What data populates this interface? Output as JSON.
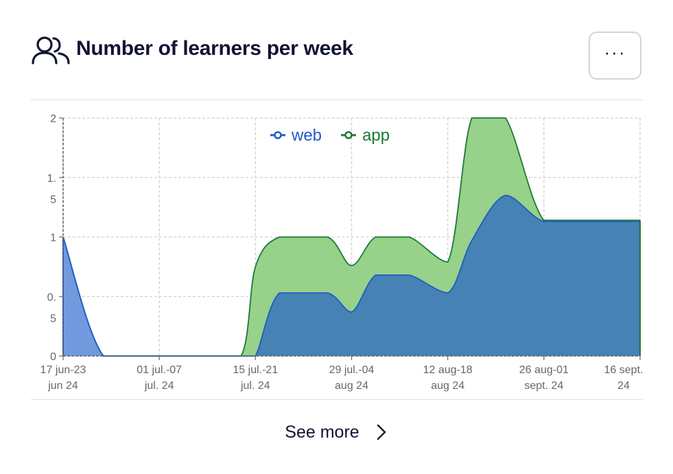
{
  "header": {
    "title": "Number of learners per week",
    "title_icon": "users-icon",
    "menu_label": "···"
  },
  "footer": {
    "see_more_label": "See more",
    "see_more_icon": "chevron-right-icon"
  },
  "colors": {
    "web_line": "#1f5bc4",
    "web_fill_early": "#7099de",
    "web_fill": "#4682b4",
    "app_line": "#1a7a35",
    "app_fill": "#97d18a",
    "title": "#111433"
  },
  "chart_data": {
    "type": "area",
    "stacked": true,
    "grid": true,
    "legend_position": "top-center",
    "x_ticks": [
      [
        "17 jun-23",
        "jun 24"
      ],
      [
        "01 jul.-07",
        "jul. 24"
      ],
      [
        "15 jul.-21",
        "jul. 24"
      ],
      [
        "29 jul.-04",
        "aug 24"
      ],
      [
        "12 aug-18",
        "aug 24"
      ],
      [
        "26 aug-01",
        "sept. 24"
      ],
      [
        "16 sept.",
        "24"
      ]
    ],
    "y_ticks": [
      [
        "0"
      ],
      [
        "0.",
        "5"
      ],
      [
        "1"
      ],
      [
        "1.",
        "5"
      ],
      [
        "2"
      ]
    ],
    "ylim": [
      0,
      2
    ],
    "x": [
      0,
      0.42,
      1,
      1.42,
      1.85,
      2,
      2.25,
      2.75,
      3,
      3.25,
      3.6,
      4,
      4.25,
      4.6,
      5,
      5.5,
      6
    ],
    "series": [
      {
        "name": "web",
        "values": [
          1,
          0,
          0,
          0,
          0,
          0,
          0.53,
          0.53,
          0.37,
          0.68,
          0.68,
          0.53,
          0.97,
          1.35,
          1.13,
          1.13,
          1.13
        ],
        "color": "#1f5bc4"
      },
      {
        "name": "app",
        "values": [
          0,
          0,
          0,
          0,
          0,
          0.75,
          0.47,
          0.47,
          0.39,
          0.32,
          0.32,
          0.26,
          1.03,
          0.65,
          0.01,
          0.01,
          0.01
        ],
        "color": "#1a7a35"
      }
    ]
  }
}
